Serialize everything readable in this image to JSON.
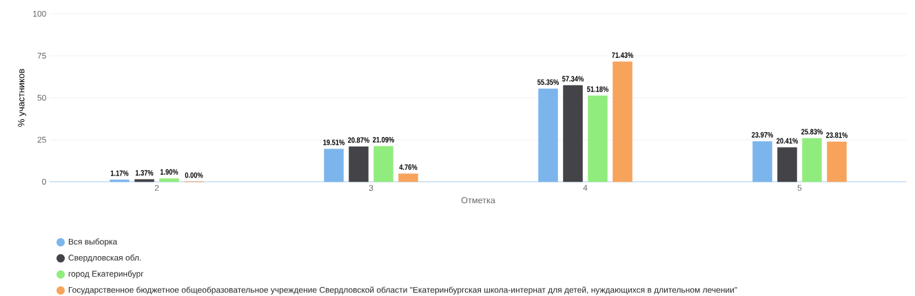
{
  "chart_data": {
    "type": "bar",
    "xlabel": "Отметка",
    "ylabel": "% участников",
    "categories": [
      "2",
      "3",
      "4",
      "5"
    ],
    "series": [
      {
        "name": "Вся выборка",
        "color": "#7cb5ec",
        "values": [
          1.17,
          19.51,
          55.35,
          23.97
        ],
        "value_labels": [
          "1.17%",
          "19.51%",
          "55.35%",
          "23.97%"
        ]
      },
      {
        "name": "Свердловская обл.",
        "color": "#434348",
        "values": [
          1.37,
          20.87,
          57.34,
          20.41
        ],
        "value_labels": [
          "1.37%",
          "20.87%",
          "57.34%",
          "20.41%"
        ]
      },
      {
        "name": "город Екатеринбург",
        "color": "#90ed7d",
        "values": [
          1.9,
          21.09,
          51.18,
          25.83
        ],
        "value_labels": [
          "1.90%",
          "21.09%",
          "51.18%",
          "25.83%"
        ]
      },
      {
        "name": "Государственное бюджетное общеобразовательное учреждение Свердловской области \"Екатеринбургская школа-интернат для детей, нуждающихся в длительном лечении\"",
        "color": "#f7a35c",
        "values": [
          0.0,
          4.76,
          71.43,
          23.81
        ],
        "value_labels": [
          "0.00%",
          "4.76%",
          "71.43%",
          "23.81%"
        ]
      }
    ],
    "ylim": [
      0,
      100
    ],
    "yticks": [
      0,
      25,
      50,
      75,
      100
    ],
    "grid": "y",
    "legend": "bottom left"
  }
}
